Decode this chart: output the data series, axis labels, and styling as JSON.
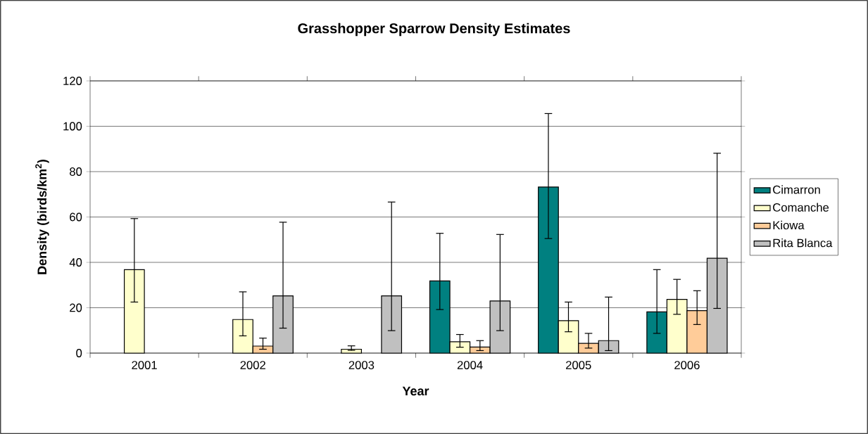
{
  "chart_data": {
    "type": "bar",
    "title": "Grasshopper Sparrow Density Estimates",
    "xlabel": "Year",
    "ylabel": "Density (birds/km$^{2}$)",
    "categories": [
      "2001",
      "2002",
      "2003",
      "2004",
      "2005",
      "2006"
    ],
    "series": [
      {
        "name": "Cimarron",
        "color": "#008080",
        "values": [
          null,
          null,
          null,
          31.8,
          73.2,
          18.2
        ],
        "errors": [
          null,
          null,
          null,
          [
            19.2,
            52.8
          ],
          [
            50.5,
            105.6
          ],
          [
            8.7,
            36.8
          ]
        ]
      },
      {
        "name": "Comanche",
        "color": "#ffffcc",
        "values": [
          36.8,
          14.8,
          1.7,
          5.0,
          14.3,
          23.7
        ],
        "errors": [
          [
            22.5,
            59.3
          ],
          [
            7.6,
            27.0
          ],
          [
            1.2,
            3.2
          ],
          [
            2.6,
            8.2
          ],
          [
            9.4,
            22.5
          ],
          [
            17.1,
            32.5
          ]
        ]
      },
      {
        "name": "Kiowa",
        "color": "#ffcc99",
        "values": [
          null,
          3.1,
          null,
          2.7,
          4.3,
          18.7
        ],
        "errors": [
          null,
          [
            1.7,
            6.6
          ],
          null,
          [
            1.1,
            5.5
          ],
          [
            2.2,
            8.7
          ],
          [
            12.6,
            27.5
          ]
        ]
      },
      {
        "name": "Rita Blanca",
        "color": "#c0c0c0",
        "values": [
          null,
          25.2,
          25.2,
          23.0,
          5.5,
          41.8
        ],
        "errors": [
          null,
          [
            11.0,
            57.7
          ],
          [
            9.9,
            66.6
          ],
          [
            9.9,
            52.3
          ],
          [
            1.1,
            24.7
          ],
          [
            19.7,
            88.1
          ]
        ]
      }
    ],
    "ylim": [
      0,
      120
    ],
    "yticks": [
      0,
      20,
      40,
      60,
      80,
      100,
      120
    ],
    "grid": "y",
    "legend": "right"
  }
}
